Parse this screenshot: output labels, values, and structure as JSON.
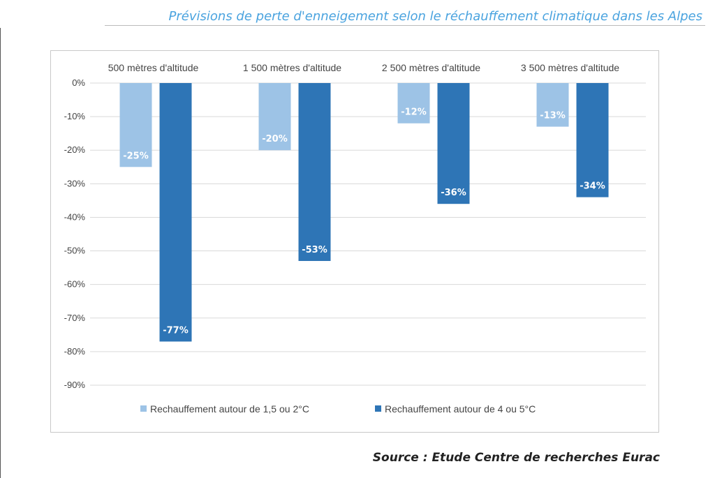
{
  "header": {
    "title": "Prévisions de perte d'enneigement selon le réchauffement climatique dans les Alpes"
  },
  "footer": {
    "source": "Source : Etude Centre de recherches Eurac"
  },
  "chart_data": {
    "type": "bar",
    "categories": [
      "500 mètres d'altitude",
      "1 500 mètres d'altitude",
      "2 500 mètres d'altitude",
      "3 500 mètres d'altitude"
    ],
    "series": [
      {
        "name": "Rechauffement autour de 1,5 ou 2°C",
        "color": "#9dc3e6",
        "values": [
          -25,
          -20,
          -12,
          -13
        ],
        "labels": [
          "-25%",
          "-20%",
          "-12%",
          "-13%"
        ]
      },
      {
        "name": "Rechauffement autour de 4 ou 5°C",
        "color": "#2e75b6",
        "values": [
          -77,
          -53,
          -36,
          -34
        ],
        "labels": [
          "-77%",
          "-53%",
          "-36%",
          "-34%"
        ]
      }
    ],
    "yticks": [
      0,
      -10,
      -20,
      -30,
      -40,
      -50,
      -60,
      -70,
      -80,
      -90
    ],
    "ytick_labels": [
      "0%",
      "-10%",
      "-20%",
      "-30%",
      "-40%",
      "-50%",
      "-60%",
      "-70%",
      "-80%",
      "-90%"
    ],
    "ylim": [
      -90,
      0
    ],
    "xaxis_position": "top",
    "grid": true,
    "legend": "bottom"
  }
}
